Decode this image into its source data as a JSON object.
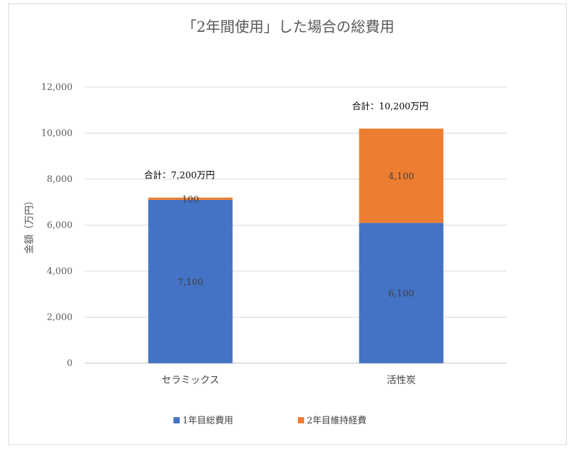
{
  "chart_data": {
    "type": "bar",
    "stacked": true,
    "title": "「2年間使用」した場合の総費用",
    "xlabel": "",
    "ylabel": "金額（万円）",
    "ylim": [
      0,
      12000
    ],
    "yticks": [
      0,
      2000,
      4000,
      6000,
      8000,
      10000,
      12000
    ],
    "ytick_labels": [
      "0",
      "2,000",
      "4,000",
      "6,000",
      "8,000",
      "10,000",
      "12,000"
    ],
    "grid": true,
    "legend_position": "bottom",
    "categories": [
      "セラミックス",
      "活性炭"
    ],
    "series": [
      {
        "name": "1年目総費用",
        "color": "#4472c4",
        "values": [
          7100,
          6100
        ],
        "labels": [
          "7,100",
          "6,100"
        ]
      },
      {
        "name": "2年目維持経費",
        "color": "#ed7d31",
        "values": [
          100,
          4100
        ],
        "labels": [
          "100",
          "4,100"
        ]
      }
    ],
    "totals": [
      {
        "value": 7200,
        "label": "合計：7,200万円"
      },
      {
        "value": 10200,
        "label": "合計：10,200万円"
      }
    ]
  }
}
